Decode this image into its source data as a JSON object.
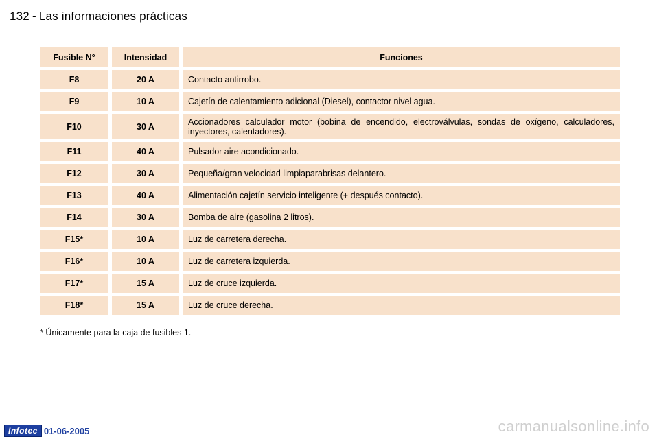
{
  "header": {
    "page_number": "132",
    "separator": "-",
    "title": "Las informaciones prácticas"
  },
  "table": {
    "columns": [
      "Fusible N°",
      "Intensidad",
      "Funciones"
    ],
    "rows": [
      {
        "fuse": "F8",
        "amps": "20 A",
        "function": "Contacto antirrobo."
      },
      {
        "fuse": "F9",
        "amps": "10 A",
        "function": "Cajetín de calentamiento adicional (Diesel), contactor nivel agua."
      },
      {
        "fuse": "F10",
        "amps": "30 A",
        "function": "Accionadores calculador motor (bobina de encendido, electroválvulas, sondas de oxígeno, calculadores, inyectores, calentadores)."
      },
      {
        "fuse": "F11",
        "amps": "40 A",
        "function": "Pulsador aire acondicionado."
      },
      {
        "fuse": "F12",
        "amps": "30 A",
        "function": "Pequeña/gran velocidad limpiaparabrisas delantero."
      },
      {
        "fuse": "F13",
        "amps": "40 A",
        "function": "Alimentación cajetín servicio inteligente (+ después contacto)."
      },
      {
        "fuse": "F14",
        "amps": "30 A",
        "function": "Bomba de aire (gasolina 2 litros)."
      },
      {
        "fuse": "F15*",
        "amps": "10 A",
        "function": "Luz de carretera derecha."
      },
      {
        "fuse": "F16*",
        "amps": "10 A",
        "function": "Luz de carretera izquierda."
      },
      {
        "fuse": "F17*",
        "amps": "15 A",
        "function": "Luz de cruce izquierda."
      },
      {
        "fuse": "F18*",
        "amps": "15 A",
        "function": "Luz de cruce derecha."
      }
    ]
  },
  "footnote": "* Únicamente para la caja de fusibles 1.",
  "footer": {
    "brand": "Infotec",
    "date": "01-06-2005",
    "watermark": "carmanualsonline.info"
  },
  "colors": {
    "cell_background": "#f8e1cb",
    "brand_blue": "#1d3fa0",
    "watermark_gray": "#cfcfcf"
  }
}
